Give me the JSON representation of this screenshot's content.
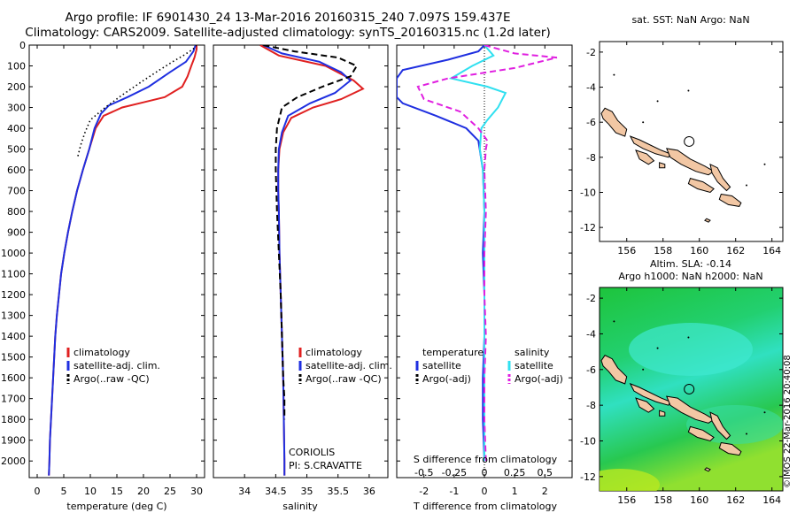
{
  "header": {
    "line1": "Argo profile: IF 6901430_24 13-Mar-2016 20160315_240 7.097S 159.437E",
    "line2": "Climatology: CARS2009. Satellite-adjusted climatology: synTS_20160315.nc (1.2d later)"
  },
  "stamp": "©IMOS 22-Mar-2016 20:40:08",
  "colors": {
    "climatology": "#e02020",
    "satellite": "#1f2fe0",
    "argo": "#000000",
    "sal_satellite": "#30e0f0",
    "sal_argo": "#e020e0",
    "land": "#f2c7a4"
  },
  "chart_data": [
    {
      "type": "line",
      "xlabel": "temperature (deg C)",
      "ylabel": "",
      "xlim": [
        -1.5,
        31.5
      ],
      "ylim": [
        2080,
        0
      ],
      "xticks": [
        0,
        5,
        10,
        15,
        20,
        25,
        30
      ],
      "yticks": [
        0,
        100,
        200,
        300,
        400,
        500,
        600,
        700,
        800,
        900,
        1000,
        1100,
        1200,
        1300,
        1400,
        1500,
        1600,
        1700,
        1800,
        1900,
        2000
      ],
      "legend": [
        "climatology",
        "satellite-adj. clim.",
        "Argo(..raw -QC)"
      ],
      "series": [
        {
          "name": "climatology",
          "color": "#e02020",
          "style": "solid",
          "points": [
            [
              30,
              0
            ],
            [
              30,
              20
            ],
            [
              29.6,
              60
            ],
            [
              29,
              100
            ],
            [
              28.3,
              150
            ],
            [
              27.3,
              200
            ],
            [
              24,
              250
            ],
            [
              20,
              275
            ],
            [
              16,
              300
            ],
            [
              12.5,
              340
            ],
            [
              11,
              400
            ],
            [
              9.8,
              500
            ],
            [
              8.6,
              600
            ],
            [
              7.5,
              700
            ],
            [
              6.6,
              800
            ],
            [
              5.8,
              900
            ],
            [
              5.1,
              1000
            ],
            [
              4.5,
              1100
            ],
            [
              4.1,
              1200
            ],
            [
              3.7,
              1300
            ],
            [
              3.4,
              1400
            ],
            [
              3.2,
              1500
            ],
            [
              3,
              1600
            ],
            [
              2.8,
              1700
            ],
            [
              2.6,
              1800
            ],
            [
              2.4,
              1900
            ],
            [
              2.3,
              2000
            ],
            [
              2.2,
              2070
            ]
          ]
        },
        {
          "name": "satellite-adj. clim.",
          "color": "#1f2fe0",
          "style": "solid",
          "points": [
            [
              29.8,
              0
            ],
            [
              29.4,
              30
            ],
            [
              28,
              80
            ],
            [
              25,
              130
            ],
            [
              21,
              200
            ],
            [
              17,
              250
            ],
            [
              13.5,
              290
            ],
            [
              12,
              330
            ],
            [
              10.8,
              400
            ],
            [
              9.8,
              500
            ],
            [
              8.6,
              600
            ],
            [
              7.5,
              700
            ],
            [
              6.6,
              800
            ],
            [
              5.8,
              900
            ],
            [
              5.1,
              1000
            ],
            [
              4.5,
              1100
            ],
            [
              4.1,
              1200
            ],
            [
              3.7,
              1300
            ],
            [
              3.4,
              1400
            ],
            [
              3.2,
              1500
            ],
            [
              3,
              1600
            ],
            [
              2.8,
              1700
            ],
            [
              2.6,
              1800
            ],
            [
              2.4,
              1900
            ],
            [
              2.3,
              2000
            ],
            [
              2.2,
              2070
            ]
          ]
        },
        {
          "name": "Argo(..raw -QC)",
          "color": "#000000",
          "style": "dotted",
          "points": [
            [
              30,
              0
            ],
            [
              29.3,
              20
            ],
            [
              27.5,
              50
            ],
            [
              25.5,
              80
            ],
            [
              23,
              120
            ],
            [
              20,
              170
            ],
            [
              16,
              240
            ],
            [
              12.8,
              300
            ],
            [
              10,
              360
            ],
            [
              9,
              420
            ],
            [
              8.2,
              480
            ],
            [
              7.6,
              540
            ]
          ]
        }
      ]
    },
    {
      "type": "line",
      "xlabel": "salinity",
      "ylabel": "",
      "xlim": [
        33.5,
        36.3
      ],
      "ylim": [
        2080,
        0
      ],
      "xticks": [
        34,
        34.5,
        35,
        35.5,
        36
      ],
      "legend": [
        "climatology",
        "satellite-adj. clim.",
        "Argo(..raw -QC)"
      ],
      "annotation": [
        "CORIOLIS",
        "PI: S.CRAVATTE"
      ],
      "series": [
        {
          "name": "climatology",
          "color": "#e02020",
          "style": "solid",
          "points": [
            [
              34.25,
              0
            ],
            [
              34.55,
              50
            ],
            [
              35.3,
              100
            ],
            [
              35.75,
              170
            ],
            [
              35.9,
              210
            ],
            [
              35.55,
              260
            ],
            [
              35.1,
              300
            ],
            [
              34.75,
              350
            ],
            [
              34.62,
              420
            ],
            [
              34.56,
              500
            ],
            [
              34.54,
              600
            ],
            [
              34.54,
              700
            ],
            [
              34.55,
              800
            ],
            [
              34.56,
              1000
            ],
            [
              34.58,
              1200
            ],
            [
              34.6,
              1400
            ],
            [
              34.62,
              1600
            ],
            [
              34.63,
              1800
            ],
            [
              34.64,
              2000
            ],
            [
              34.64,
              2070
            ]
          ]
        },
        {
          "name": "satellite-adj. clim.",
          "color": "#1f2fe0",
          "style": "solid",
          "points": [
            [
              34.3,
              0
            ],
            [
              34.6,
              40
            ],
            [
              35.2,
              80
            ],
            [
              35.55,
              130
            ],
            [
              35.7,
              170
            ],
            [
              35.45,
              230
            ],
            [
              35.05,
              280
            ],
            [
              34.7,
              340
            ],
            [
              34.6,
              420
            ],
            [
              34.55,
              500
            ],
            [
              34.54,
              600
            ],
            [
              34.54,
              700
            ],
            [
              34.55,
              800
            ],
            [
              34.56,
              1000
            ],
            [
              34.58,
              1200
            ],
            [
              34.6,
              1400
            ],
            [
              34.62,
              1600
            ],
            [
              34.63,
              1800
            ],
            [
              34.64,
              2000
            ],
            [
              34.64,
              2070
            ]
          ]
        },
        {
          "name": "Argo(..raw -QC)",
          "color": "#000000",
          "style": "dashed",
          "points": [
            [
              34.3,
              0
            ],
            [
              34.8,
              30
            ],
            [
              35.5,
              60
            ],
            [
              35.8,
              100
            ],
            [
              35.7,
              150
            ],
            [
              35.25,
              200
            ],
            [
              34.85,
              250
            ],
            [
              34.6,
              300
            ],
            [
              34.52,
              400
            ],
            [
              34.5,
              500
            ],
            [
              34.5,
              600
            ],
            [
              34.52,
              800
            ],
            [
              34.55,
              1000
            ],
            [
              34.58,
              1200
            ],
            [
              34.6,
              1400
            ],
            [
              34.62,
              1600
            ],
            [
              34.64,
              1700
            ],
            [
              34.64,
              1800
            ]
          ]
        }
      ]
    },
    {
      "type": "line",
      "xlabel": "T difference from climatology",
      "xlabel_top": "S difference from climatology",
      "ylabel": "",
      "xlim": [
        -2.9,
        2.9
      ],
      "ylim": [
        2080,
        0
      ],
      "xticks": [
        -2,
        -1,
        0,
        1,
        2
      ],
      "xtick_labels_top": [
        "-0.5",
        "-0.25",
        "0",
        "0.25",
        "0.5"
      ],
      "legend_temperature": [
        "temperature",
        "satellite",
        "Argo(-adj)"
      ],
      "legend_salinity": [
        "salinity",
        "satellite",
        "Argo(-adj)"
      ],
      "series": [
        {
          "name": "satellite",
          "group": "temperature",
          "color": "#1f2fe0",
          "style": "solid",
          "points": [
            [
              0,
              0
            ],
            [
              -0.2,
              30
            ],
            [
              -1.2,
              70
            ],
            [
              -2.7,
              120
            ],
            [
              -2.9,
              160
            ],
            [
              -2.9,
              250
            ],
            [
              -2.7,
              280
            ],
            [
              -1.6,
              340
            ],
            [
              -0.6,
              400
            ],
            [
              -0.2,
              460
            ],
            [
              -0.05,
              600
            ],
            [
              0,
              800
            ],
            [
              -0.05,
              1000
            ],
            [
              0,
              1200
            ],
            [
              0,
              1400
            ],
            [
              -0.05,
              1600
            ],
            [
              -0.05,
              1800
            ],
            [
              0,
              2000
            ]
          ]
        },
        {
          "name": "satellite",
          "group": "salinity",
          "color": "#30e0f0",
          "style": "solid",
          "points": [
            [
              0,
              0
            ],
            [
              0.3,
              50
            ],
            [
              -0.4,
              100
            ],
            [
              -1.1,
              160
            ],
            [
              0.1,
              200
            ],
            [
              0.7,
              230
            ],
            [
              0.45,
              300
            ],
            [
              0.1,
              360
            ],
            [
              -0.1,
              400
            ],
            [
              -0.15,
              500
            ],
            [
              -0.05,
              600
            ],
            [
              0,
              800
            ],
            [
              0,
              1000
            ],
            [
              0,
              1200
            ],
            [
              0,
              1400
            ],
            [
              0,
              1600
            ],
            [
              0,
              1800
            ],
            [
              0,
              2000
            ]
          ]
        },
        {
          "name": "Argo(-adj)",
          "group": "salinity",
          "color": "#e020e0",
          "style": "dashed",
          "points": [
            [
              0,
              0
            ],
            [
              1,
              40
            ],
            [
              2.4,
              60
            ],
            [
              1,
              110
            ],
            [
              -1.2,
              160
            ],
            [
              -2.2,
              200
            ],
            [
              -2,
              260
            ],
            [
              -0.8,
              320
            ],
            [
              -0.2,
              400
            ],
            [
              0.1,
              460
            ],
            [
              0.05,
              500
            ],
            [
              0,
              600
            ],
            [
              0.05,
              800
            ],
            [
              0,
              1000
            ],
            [
              0,
              1200
            ],
            [
              0.05,
              1400
            ],
            [
              0,
              1600
            ],
            [
              0,
              1800
            ],
            [
              0.05,
              2000
            ]
          ]
        }
      ]
    }
  ],
  "maps": [
    {
      "title": [
        "sat. SST: NaN Argo: NaN"
      ],
      "xticks": [
        156,
        158,
        160,
        162,
        164
      ],
      "yticks": [
        -2,
        -4,
        -6,
        -8,
        -10,
        -12
      ],
      "xlim": [
        154.5,
        164.6
      ],
      "ylim": [
        -12.8,
        -1.4
      ],
      "background": "white",
      "argo_position": [
        159.437,
        -7.097
      ]
    },
    {
      "title": [
        "Altim. SLA: -0.14",
        "Argo h1000: NaN h2000: NaN"
      ],
      "xticks": [
        156,
        158,
        160,
        162,
        164
      ],
      "yticks": [
        -2,
        -4,
        -6,
        -8,
        -10,
        -12
      ],
      "xlim": [
        154.5,
        164.6
      ],
      "ylim": [
        -12.8,
        -1.4
      ],
      "background": "sla-field",
      "argo_position": [
        159.437,
        -7.097
      ]
    }
  ],
  "islands": [
    [
      [
        154.6,
        -5.5
      ],
      [
        154.8,
        -5.2
      ],
      [
        155.2,
        -5.4
      ],
      [
        155.5,
        -5.9
      ],
      [
        156.0,
        -6.4
      ],
      [
        155.9,
        -6.8
      ],
      [
        155.4,
        -6.6
      ],
      [
        155.0,
        -6.1
      ],
      [
        154.7,
        -5.8
      ]
    ],
    [
      [
        156.2,
        -6.8
      ],
      [
        156.7,
        -7.0
      ],
      [
        157.3,
        -7.3
      ],
      [
        157.9,
        -7.6
      ],
      [
        158.4,
        -7.8
      ],
      [
        158.3,
        -8.0
      ],
      [
        157.6,
        -7.8
      ],
      [
        156.9,
        -7.5
      ],
      [
        156.4,
        -7.2
      ]
    ],
    [
      [
        156.5,
        -7.6
      ],
      [
        157.1,
        -7.8
      ],
      [
        157.5,
        -8.2
      ],
      [
        157.2,
        -8.4
      ],
      [
        156.7,
        -8.1
      ]
    ],
    [
      [
        158.2,
        -7.5
      ],
      [
        158.8,
        -7.6
      ],
      [
        159.5,
        -8.1
      ],
      [
        160.3,
        -8.5
      ],
      [
        160.8,
        -8.8
      ],
      [
        160.5,
        -9.0
      ],
      [
        159.8,
        -8.8
      ],
      [
        159.0,
        -8.4
      ],
      [
        158.4,
        -8.0
      ]
    ],
    [
      [
        159.5,
        -9.2
      ],
      [
        160.2,
        -9.4
      ],
      [
        160.8,
        -9.8
      ],
      [
        160.6,
        -10.0
      ],
      [
        159.9,
        -9.8
      ],
      [
        159.4,
        -9.5
      ]
    ],
    [
      [
        160.6,
        -8.4
      ],
      [
        161.0,
        -8.6
      ],
      [
        161.3,
        -9.2
      ],
      [
        161.7,
        -9.7
      ],
      [
        161.5,
        -9.9
      ],
      [
        161.0,
        -9.4
      ],
      [
        160.7,
        -8.9
      ]
    ],
    [
      [
        161.2,
        -10.1
      ],
      [
        161.8,
        -10.2
      ],
      [
        162.3,
        -10.6
      ],
      [
        162.2,
        -10.8
      ],
      [
        161.6,
        -10.7
      ],
      [
        161.1,
        -10.4
      ]
    ],
    [
      [
        157.8,
        -8.3
      ],
      [
        158.1,
        -8.4
      ],
      [
        158.1,
        -8.6
      ],
      [
        157.8,
        -8.6
      ]
    ],
    [
      [
        160.4,
        -11.5
      ],
      [
        160.6,
        -11.6
      ],
      [
        160.5,
        -11.7
      ],
      [
        160.3,
        -11.6
      ]
    ]
  ]
}
